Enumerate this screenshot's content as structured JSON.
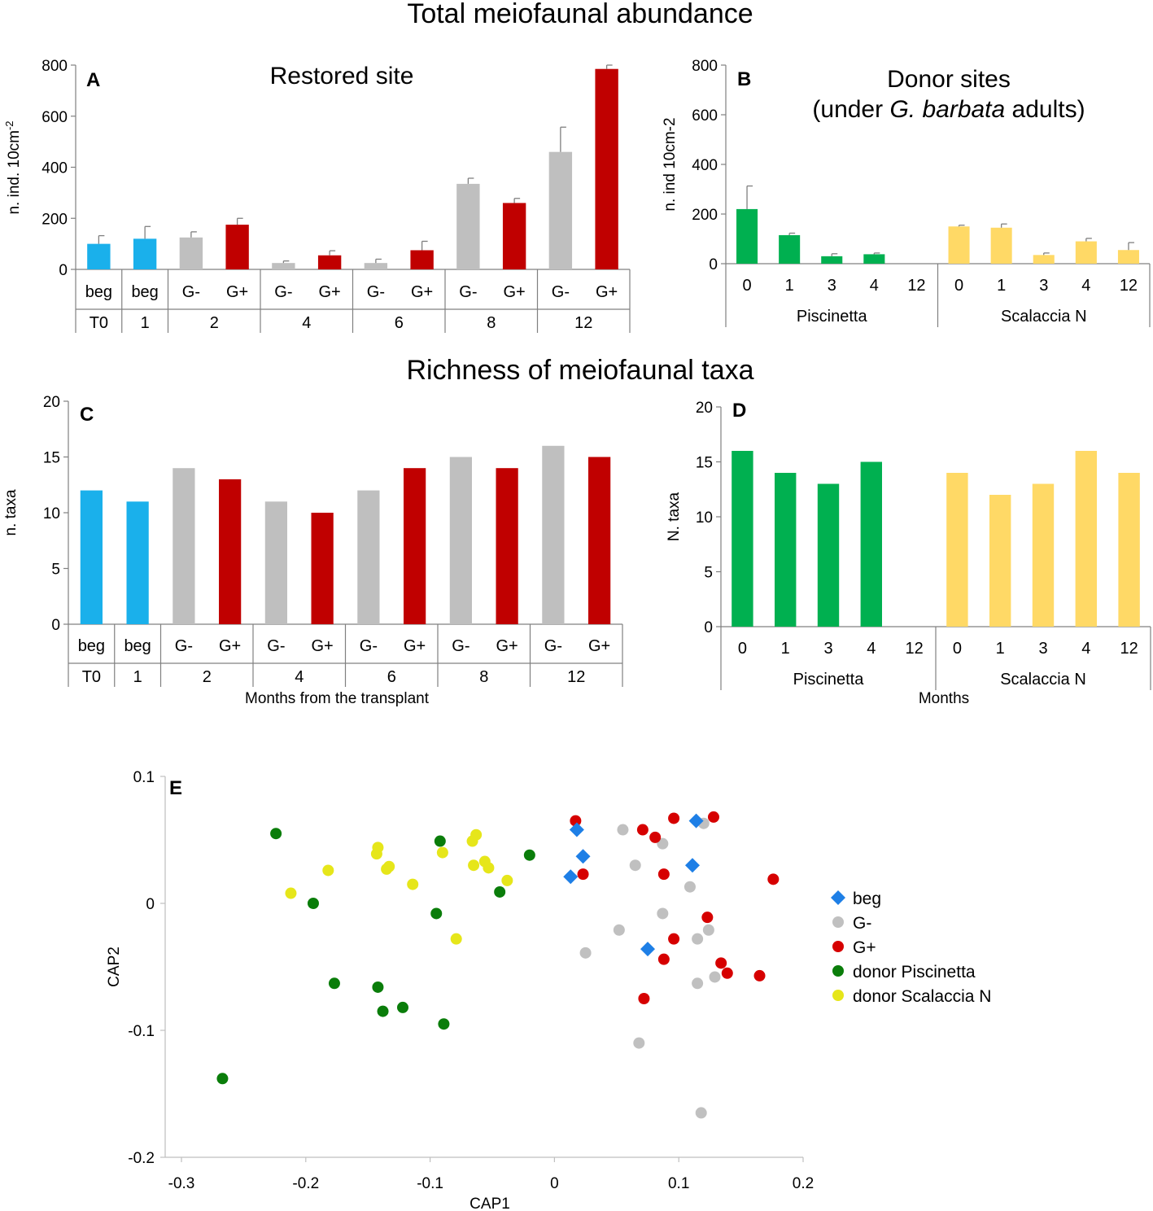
{
  "figure": {
    "title_abundance": "Total meiofaunal abundance",
    "title_richness": "Richness of meiofaunal taxa"
  },
  "colors": {
    "beg": "#1AB0EB",
    "g_minus": "#BFBFBF",
    "g_plus": "#C00000",
    "piscinetta": "#00B050",
    "scalaccia": "#FFD966",
    "scatter_beg": "#1E7FE6",
    "scatter_g_minus": "#C0C0C0",
    "scatter_g_plus": "#D60000",
    "scatter_piscinetta": "#0A7D0A",
    "scatter_scalaccia": "#E6E61A",
    "axis": "#808080",
    "errorbar": "#7F7F7F"
  },
  "chart_data": [
    {
      "id": "A",
      "type": "bar",
      "panel_label": "A",
      "title": "Restored site",
      "ylabel": "n. ind. 10cm",
      "ylabel_sup": "-2",
      "xlabel": "",
      "ylim": [
        0,
        800
      ],
      "yticks": [
        0,
        200,
        400,
        600,
        800
      ],
      "categories": [
        "beg",
        "beg",
        "G-",
        "G+",
        "G-",
        "G+",
        "G-",
        "G+",
        "G-",
        "G+",
        "G-",
        "G+"
      ],
      "values": [
        100,
        120,
        125,
        175,
        25,
        55,
        25,
        75,
        335,
        260,
        460,
        785
      ],
      "errors": [
        32,
        48,
        22,
        25,
        8,
        18,
        15,
        35,
        22,
        18,
        97,
        15
      ],
      "series_keys": [
        "beg",
        "beg",
        "g_minus",
        "g_plus",
        "g_minus",
        "g_plus",
        "g_minus",
        "g_plus",
        "g_minus",
        "g_plus",
        "g_minus",
        "g_plus"
      ],
      "groups": [
        {
          "label": "T0",
          "span": 1
        },
        {
          "label": "1",
          "span": 1
        },
        {
          "label": "2",
          "span": 2
        },
        {
          "label": "4",
          "span": 2
        },
        {
          "label": "6",
          "span": 2
        },
        {
          "label": "8",
          "span": 2
        },
        {
          "label": "12",
          "span": 2
        }
      ]
    },
    {
      "id": "B",
      "type": "bar",
      "panel_label": "B",
      "title_line1": "Donor sites",
      "title_line2_pre": "(under ",
      "title_line2_italic": "G. barbata",
      "title_line2_post": " adults)",
      "ylabel": "n. ind 10cm-2",
      "xlabel": "",
      "ylim": [
        0,
        800
      ],
      "yticks": [
        0,
        200,
        400,
        600,
        800
      ],
      "categories": [
        "0",
        "1",
        "3",
        "4",
        "12",
        "0",
        "1",
        "3",
        "4",
        "12"
      ],
      "values": [
        220,
        115,
        30,
        38,
        null,
        150,
        145,
        35,
        90,
        55
      ],
      "errors": [
        93,
        8,
        10,
        5,
        null,
        5,
        15,
        8,
        12,
        30
      ],
      "series_keys": [
        "piscinetta",
        "piscinetta",
        "piscinetta",
        "piscinetta",
        "piscinetta",
        "scalaccia",
        "scalaccia",
        "scalaccia",
        "scalaccia",
        "scalaccia"
      ],
      "groups": [
        {
          "label": "Piscinetta",
          "span": 5
        },
        {
          "label": "Scalaccia N",
          "span": 5
        }
      ]
    },
    {
      "id": "C",
      "type": "bar",
      "panel_label": "C",
      "ylabel": "n. taxa",
      "xlabel": "Months from the transplant",
      "ylim": [
        0,
        20
      ],
      "yticks": [
        0,
        5,
        10,
        15,
        20
      ],
      "categories": [
        "beg",
        "beg",
        "G-",
        "G+",
        "G-",
        "G+",
        "G-",
        "G+",
        "G-",
        "G+",
        "G-",
        "G+"
      ],
      "values": [
        12,
        11,
        14,
        13,
        11,
        10,
        12,
        14,
        15,
        14,
        16,
        15
      ],
      "series_keys": [
        "beg",
        "beg",
        "g_minus",
        "g_plus",
        "g_minus",
        "g_plus",
        "g_minus",
        "g_plus",
        "g_minus",
        "g_plus",
        "g_minus",
        "g_plus"
      ],
      "groups": [
        {
          "label": "T0",
          "span": 1
        },
        {
          "label": "1",
          "span": 1
        },
        {
          "label": "2",
          "span": 2
        },
        {
          "label": "4",
          "span": 2
        },
        {
          "label": "6",
          "span": 2
        },
        {
          "label": "8",
          "span": 2
        },
        {
          "label": "12",
          "span": 2
        }
      ]
    },
    {
      "id": "D",
      "type": "bar",
      "panel_label": "D",
      "ylabel": "N. taxa",
      "xlabel": "Months",
      "ylim": [
        0,
        20
      ],
      "yticks": [
        0,
        5,
        10,
        15,
        20
      ],
      "categories": [
        "0",
        "1",
        "3",
        "4",
        "12",
        "0",
        "1",
        "3",
        "4",
        "12"
      ],
      "values": [
        16,
        14,
        13,
        15,
        null,
        14,
        12,
        13,
        16,
        14
      ],
      "series_keys": [
        "piscinetta",
        "piscinetta",
        "piscinetta",
        "piscinetta",
        "piscinetta",
        "scalaccia",
        "scalaccia",
        "scalaccia",
        "scalaccia",
        "scalaccia"
      ],
      "groups": [
        {
          "label": "Piscinetta",
          "span": 5
        },
        {
          "label": "Scalaccia N",
          "span": 5
        }
      ]
    },
    {
      "id": "E",
      "type": "scatter",
      "panel_label": "E",
      "xlabel": "CAP1",
      "ylabel": "CAP2",
      "xlim": [
        -0.3,
        0.2
      ],
      "ylim": [
        -0.2,
        0.1
      ],
      "xticks": [
        -0.3,
        -0.2,
        -0.1,
        0,
        0.1,
        0.2
      ],
      "yticks": [
        -0.2,
        -0.1,
        0,
        0.1
      ],
      "xtick_labels": [
        "-0.3",
        "-0.2",
        "-0.1",
        "0",
        "0.1",
        "0.2"
      ],
      "ytick_labels": [
        "-0.2",
        "-0.1",
        "0",
        "0.1"
      ],
      "legend_position": "right",
      "series": [
        {
          "name": "beg",
          "key": "scatter_beg",
          "marker": "diamond",
          "points": [
            [
              0.018,
              0.058
            ],
            [
              0.023,
              0.037
            ],
            [
              0.013,
              0.021
            ],
            [
              0.114,
              0.065
            ],
            [
              0.111,
              0.03
            ],
            [
              0.075,
              -0.036
            ]
          ]
        },
        {
          "name": "G-",
          "key": "scatter_g_minus",
          "marker": "circle",
          "points": [
            [
              0.055,
              0.058
            ],
            [
              0.12,
              0.063
            ],
            [
              0.087,
              0.047
            ],
            [
              0.065,
              0.03
            ],
            [
              0.109,
              0.013
            ],
            [
              0.087,
              -0.008
            ],
            [
              0.052,
              -0.021
            ],
            [
              0.124,
              -0.021
            ],
            [
              0.115,
              -0.028
            ],
            [
              0.025,
              -0.039
            ],
            [
              0.129,
              -0.058
            ],
            [
              0.115,
              -0.063
            ],
            [
              0.068,
              -0.11
            ],
            [
              0.118,
              -0.165
            ]
          ]
        },
        {
          "name": "G+",
          "key": "scatter_g_plus",
          "marker": "circle",
          "points": [
            [
              0.017,
              0.065
            ],
            [
              0.096,
              0.067
            ],
            [
              0.128,
              0.068
            ],
            [
              0.071,
              0.058
            ],
            [
              0.081,
              0.052
            ],
            [
              0.023,
              0.023
            ],
            [
              0.088,
              0.023
            ],
            [
              0.176,
              0.019
            ],
            [
              0.123,
              -0.011
            ],
            [
              0.096,
              -0.028
            ],
            [
              0.088,
              -0.044
            ],
            [
              0.134,
              -0.047
            ],
            [
              0.139,
              -0.055
            ],
            [
              0.165,
              -0.057
            ],
            [
              0.072,
              -0.075
            ]
          ]
        },
        {
          "name": "donor Piscinetta",
          "key": "scatter_piscinetta",
          "marker": "circle",
          "points": [
            [
              -0.224,
              0.055
            ],
            [
              -0.092,
              0.049
            ],
            [
              -0.02,
              0.038
            ],
            [
              -0.044,
              0.009
            ],
            [
              -0.194,
              0
            ],
            [
              -0.095,
              -0.008
            ],
            [
              -0.177,
              -0.063
            ],
            [
              -0.142,
              -0.066
            ],
            [
              -0.138,
              -0.085
            ],
            [
              -0.122,
              -0.082
            ],
            [
              -0.089,
              -0.095
            ],
            [
              -0.267,
              -0.138
            ]
          ]
        },
        {
          "name": "donor Scalaccia N",
          "key": "scatter_scalaccia",
          "marker": "circle",
          "points": [
            [
              -0.142,
              0.044
            ],
            [
              -0.143,
              0.039
            ],
            [
              -0.063,
              0.054
            ],
            [
              -0.066,
              0.049
            ],
            [
              -0.09,
              0.04
            ],
            [
              -0.056,
              0.033
            ],
            [
              -0.053,
              0.028
            ],
            [
              -0.065,
              0.03
            ],
            [
              -0.133,
              0.029
            ],
            [
              -0.135,
              0.027
            ],
            [
              -0.182,
              0.026
            ],
            [
              -0.114,
              0.015
            ],
            [
              -0.038,
              0.018
            ],
            [
              -0.212,
              0.008
            ],
            [
              -0.079,
              -0.028
            ]
          ]
        }
      ]
    }
  ]
}
